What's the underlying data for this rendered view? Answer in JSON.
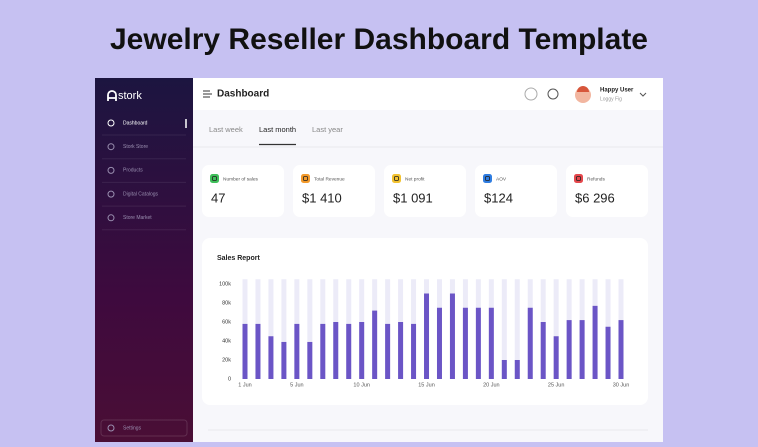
{
  "header": {
    "title": "Jewelry Reseller Dashboard Template"
  },
  "sidebar": {
    "logo": "stork",
    "items": [
      "Dashboard",
      "Stork Store",
      "Products",
      "Digital Catalogs",
      "Store Market"
    ],
    "settings": "Settings"
  },
  "topbar": {
    "title": "Dashboard",
    "user_name": "Happy User",
    "user_sub": "Loggy Fig"
  },
  "tabs": [
    "Last week",
    "Last month",
    "Last year"
  ],
  "kpis": [
    {
      "label": "Number of sales",
      "value": "47",
      "color": "#3fbf5a"
    },
    {
      "label": "Total Revenue",
      "value": "$1 410",
      "color": "#f39a2b"
    },
    {
      "label": "Net profit",
      "value": "$1 091",
      "color": "#f2c230"
    },
    {
      "label": "AOV",
      "value": "$124",
      "color": "#2f7de1"
    },
    {
      "label": "Refunds",
      "value": "$6 296",
      "color": "#e5484d"
    }
  ],
  "chart_data": {
    "type": "bar",
    "title": "Sales Report",
    "categories": [
      "1 Jun",
      null,
      null,
      null,
      "5 Jun",
      null,
      null,
      null,
      null,
      "10 Jun",
      null,
      null,
      null,
      null,
      "15 Jun",
      null,
      null,
      null,
      null,
      "20 Jun",
      null,
      null,
      null,
      null,
      "25 Jun",
      null,
      null,
      null,
      null,
      "30 Jun"
    ],
    "values": [
      58000,
      58000,
      45000,
      39000,
      58000,
      39000,
      58000,
      60000,
      58000,
      60000,
      72000,
      58000,
      60000,
      58000,
      90000,
      75000,
      90000,
      75000,
      75000,
      75000,
      20000,
      20000,
      75000,
      60000,
      45000,
      62000,
      62000,
      77000,
      55000,
      62000
    ],
    "color": "#6b55c6",
    "track_color": "#ecebf8",
    "ylim": [
      0,
      105000
    ],
    "yticks": [
      0,
      {
        "value": 20000,
        "label": "20k"
      },
      {
        "value": 40000,
        "label": "40k"
      },
      {
        "value": 60000,
        "label": "60k"
      },
      {
        "value": 80000,
        "label": "80k"
      },
      {
        "value": 100000,
        "label": "100k"
      }
    ]
  }
}
